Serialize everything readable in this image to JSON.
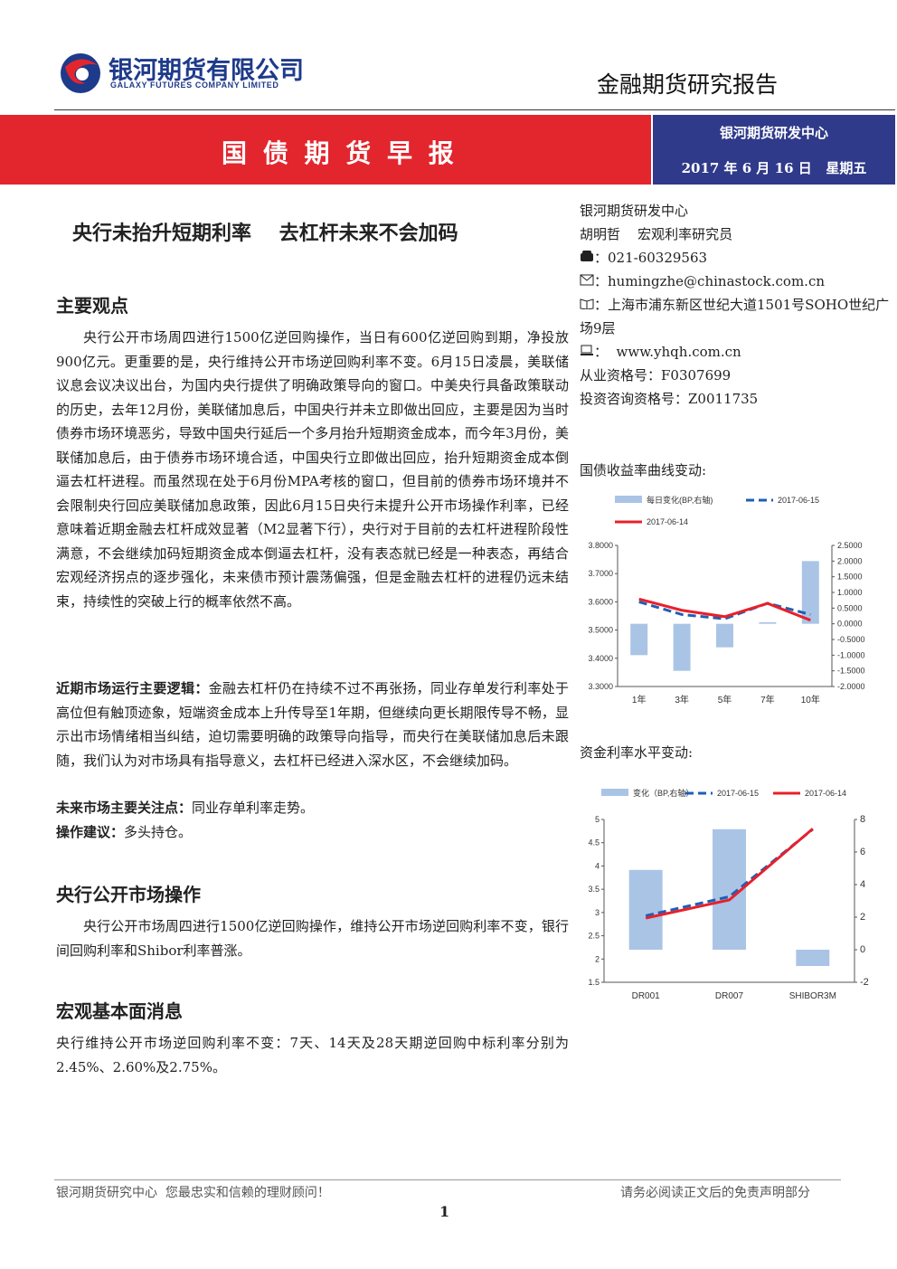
{
  "header": {
    "company_cn": "银河期货有限公司",
    "company_en": "GALAXY FUTURES COMPANY LIMITED",
    "report_type": "金融期货研究报告"
  },
  "banner": {
    "title": "国 债 期 货 早 报",
    "center": "银河期货研发中心",
    "date": "2017 年 6 月 16 日   星期五"
  },
  "headline": "央行未抬升短期利率    去杠杆未来不会加码",
  "main_points": {
    "heading": "主要观点",
    "text": "央行公开市场周四进行1500亿逆回购操作，当日有600亿逆回购到期，净投放900亿元。更重要的是，央行维持公开市场逆回购利率不变。6月15日凌晨，美联储议息会议决议出台，为国内央行提供了明确政策导向的窗口。中美央行具备政策联动的历史，去年12月份，美联储加息后，中国央行并未立即做出回应，主要是因为当时债券市场环境恶劣，导致中国央行延后一个多月抬升短期资金成本，而今年3月份，美联储加息后，由于债券市场环境合适，中国央行立即做出回应，抬升短期资金成本倒逼去杠杆进程。而虽然现在处于6月份MPA考核的窗口，但目前的债券市场环境并不会限制央行回应美联储加息政策，因此6月15日央行未提升公开市场操作利率，已经意味着近期金融去杠杆成效显著（M2显著下行），央行对于目前的去杠杆进程阶段性满意，不会继续加码短期资金成本倒逼去杠杆，没有表态就已经是一种表态，再结合宏观经济拐点的逐步强化，未来债市预计震荡偏强，但是金融去杠杆的进程仍远未结束，持续性的突破上行的概率依然不高。"
  },
  "logic": {
    "label": "近期市场运行主要逻辑：",
    "text": "金融去杠杆仍在持续不过不再张扬，同业存单发行利率处于高位但有触顶迹象，短端资金成本上升传导至1年期，但继续向更长期限传导不畅，显示出市场情绪相当纠结，迫切需要明确的政策导向指导，而央行在美联储加息后未跟随，我们认为对市场具有指导意义，去杠杆已经进入深水区，不会继续加码。"
  },
  "focus": {
    "label": "未来市场主要关注点：",
    "text": "同业存单利率走势。"
  },
  "advice": {
    "label": "操作建议：",
    "text": "多头持仓。"
  },
  "section_open_market": {
    "heading": "央行公开市场操作",
    "text": "央行公开市场周四进行1500亿逆回购操作，维持公开市场逆回购利率不变，银行间回购利率和Shibor利率普涨。"
  },
  "section_macro": {
    "heading": "宏观基本面消息",
    "text": "央行维持公开市场逆回购利率不变：7天、14天及28天期逆回购中标利率分别为2.45%、2.60%及2.75%。"
  },
  "sidebar": {
    "org": "银河期货研发中心",
    "analyst": "胡明哲    宏观利率研究员",
    "phone": "：021-60329563",
    "email": "：humingzhe@chinastock.com.cn",
    "address": "：上海市浦东新区世纪大道1501号SOHO世纪广场9层",
    "web": "：  www.yhqh.com.cn",
    "cert1": "从业资格号：F0307699",
    "cert2": "投资咨询资格号：Z0011735"
  },
  "chart_data": [
    {
      "type": "combo",
      "title": "国债收益率曲线变动:",
      "categories": [
        "1年",
        "3年",
        "5年",
        "7年",
        "10年"
      ],
      "series": [
        {
          "name": "每日变化(BP,右轴)",
          "kind": "bar",
          "axis": "y2",
          "color": "#aac4e6",
          "values": [
            -1.0,
            -1.5,
            -0.75,
            0.05,
            2.0
          ]
        },
        {
          "name": "2017-06-15",
          "kind": "line",
          "dashed": true,
          "color": "#1f5fb4",
          "values": [
            3.6,
            3.555,
            3.54,
            3.595,
            3.555
          ]
        },
        {
          "name": "2017-06-14",
          "kind": "line",
          "dashed": false,
          "color": "#e8202a",
          "values": [
            3.61,
            3.57,
            3.5475,
            3.5945,
            3.535
          ]
        }
      ],
      "ylim": [
        3.3,
        3.8
      ],
      "yticks": [
        {
          "value": 3.3,
          "label": "3.3000"
        },
        {
          "value": 3.4,
          "label": "3.4000"
        },
        {
          "value": 3.5,
          "label": "3.5000"
        },
        {
          "value": 3.6,
          "label": "3.6000"
        },
        {
          "value": 3.7,
          "label": "3.7000"
        },
        {
          "value": 3.8,
          "label": "3.8000"
        }
      ],
      "y2lim": [
        -2.0,
        2.5
      ],
      "y2ticks": [
        {
          "value": -2.0,
          "label": "-2.0000"
        },
        {
          "value": -1.5,
          "label": "-1.5000"
        },
        {
          "value": -1.0,
          "label": "-1.0000"
        },
        {
          "value": -0.5,
          "label": "-0.5000"
        },
        {
          "value": 0,
          "label": "0.0000"
        },
        {
          "value": 0.5,
          "label": "0.5000"
        },
        {
          "value": 1.0,
          "label": "1.0000"
        },
        {
          "value": 1.5,
          "label": "1.5000"
        },
        {
          "value": 2.0,
          "label": "2.0000"
        },
        {
          "value": 2.5,
          "label": "2.5000"
        }
      ]
    },
    {
      "type": "combo",
      "title": "资金利率水平变动:",
      "categories": [
        "DR001",
        "DR007",
        "SHIBOR3M"
      ],
      "series": [
        {
          "name": "变化（BP,右轴）",
          "kind": "bar",
          "axis": "y2",
          "color": "#aac4e6",
          "values": [
            4.9,
            7.4,
            -1.0
          ]
        },
        {
          "name": "2017-06-15",
          "kind": "line",
          "dashed": true,
          "color": "#1f5fb4",
          "values": [
            2.93,
            3.34,
            4.79
          ]
        },
        {
          "name": "2017-06-14",
          "kind": "line",
          "dashed": false,
          "color": "#e8202a",
          "values": [
            2.88,
            3.27,
            4.8
          ]
        }
      ],
      "ylim": [
        1.5,
        5
      ],
      "yticks": [
        1.5,
        2,
        2.5,
        3,
        3.5,
        4,
        4.5,
        5
      ],
      "y2lim": [
        -2,
        8
      ],
      "y2ticks": [
        -2,
        0,
        2,
        4,
        6,
        8
      ]
    }
  ],
  "footer": {
    "left": "银河期货研究中心  您最忠实和信赖的理财顾问！",
    "right": "请务必阅读正文后的免责声明部分",
    "page": "1"
  }
}
